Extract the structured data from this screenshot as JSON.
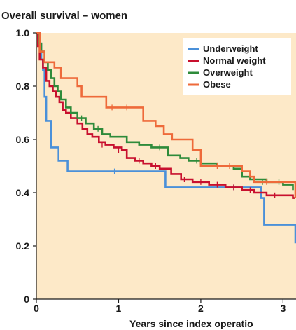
{
  "chart_data": {
    "type": "line",
    "title": "Overall survival – women",
    "xlabel": "Years since index operatio",
    "ylabel": "",
    "xlim": [
      0,
      3.15
    ],
    "ylim": [
      0,
      1.0
    ],
    "x_ticks": [
      0,
      1,
      2,
      3
    ],
    "x_tick_labels": [
      "0",
      "1",
      "2",
      "3"
    ],
    "y_ticks": [
      0,
      0.2,
      0.4,
      0.6,
      0.8,
      1.0
    ],
    "y_tick_labels": [
      "0",
      "0.2",
      "0.4",
      "0.6",
      "0.8",
      "1.0"
    ],
    "grid": false,
    "legend_position": "top-right",
    "background_color": "#fde9c8",
    "series": [
      {
        "name": "Underweight",
        "color": "#4a90d9",
        "points": [
          [
            0,
            1.0
          ],
          [
            0.02,
            0.96
          ],
          [
            0.06,
            0.9
          ],
          [
            0.08,
            0.86
          ],
          [
            0.1,
            0.76
          ],
          [
            0.12,
            0.67
          ],
          [
            0.18,
            0.57
          ],
          [
            0.27,
            0.52
          ],
          [
            0.38,
            0.48
          ],
          [
            1.57,
            0.48
          ],
          [
            1.57,
            0.42
          ],
          [
            2.73,
            0.42
          ],
          [
            2.73,
            0.38
          ],
          [
            2.77,
            0.38
          ],
          [
            2.77,
            0.28
          ],
          [
            3.15,
            0.28
          ],
          [
            3.15,
            0.21
          ]
        ],
        "censor_marks": [
          [
            0.95,
            0.48
          ],
          [
            2.4,
            0.42
          ]
        ]
      },
      {
        "name": "Normal weight",
        "color": "#c8102e",
        "points": [
          [
            0,
            1.0
          ],
          [
            0.02,
            0.95
          ],
          [
            0.04,
            0.9
          ],
          [
            0.08,
            0.87
          ],
          [
            0.12,
            0.82
          ],
          [
            0.16,
            0.8
          ],
          [
            0.2,
            0.78
          ],
          [
            0.24,
            0.76
          ],
          [
            0.28,
            0.74
          ],
          [
            0.32,
            0.71
          ],
          [
            0.36,
            0.7
          ],
          [
            0.42,
            0.68
          ],
          [
            0.5,
            0.66
          ],
          [
            0.56,
            0.64
          ],
          [
            0.62,
            0.62
          ],
          [
            0.68,
            0.61
          ],
          [
            0.76,
            0.59
          ],
          [
            0.84,
            0.58
          ],
          [
            0.94,
            0.57
          ],
          [
            1.04,
            0.56
          ],
          [
            1.1,
            0.53
          ],
          [
            1.2,
            0.52
          ],
          [
            1.3,
            0.51
          ],
          [
            1.4,
            0.5
          ],
          [
            1.5,
            0.49
          ],
          [
            1.64,
            0.47
          ],
          [
            1.76,
            0.45
          ],
          [
            1.9,
            0.44
          ],
          [
            2.1,
            0.43
          ],
          [
            2.3,
            0.42
          ],
          [
            2.5,
            0.41
          ],
          [
            2.65,
            0.4
          ],
          [
            2.8,
            0.39
          ],
          [
            3.0,
            0.39
          ],
          [
            3.12,
            0.38
          ],
          [
            3.15,
            0.38
          ]
        ],
        "censor_marks": [
          [
            0.8,
            0.58
          ],
          [
            1.0,
            0.56
          ],
          [
            1.25,
            0.52
          ],
          [
            1.45,
            0.5
          ],
          [
            1.8,
            0.45
          ],
          [
            2.0,
            0.44
          ],
          [
            2.2,
            0.43
          ],
          [
            2.4,
            0.42
          ],
          [
            2.6,
            0.41
          ],
          [
            2.9,
            0.39
          ]
        ]
      },
      {
        "name": "Overweight",
        "color": "#2e8b3a",
        "points": [
          [
            0,
            1.0
          ],
          [
            0.03,
            0.96
          ],
          [
            0.06,
            0.93
          ],
          [
            0.1,
            0.89
          ],
          [
            0.14,
            0.86
          ],
          [
            0.18,
            0.83
          ],
          [
            0.22,
            0.8
          ],
          [
            0.26,
            0.78
          ],
          [
            0.3,
            0.75
          ],
          [
            0.36,
            0.72
          ],
          [
            0.42,
            0.7
          ],
          [
            0.5,
            0.68
          ],
          [
            0.6,
            0.66
          ],
          [
            0.7,
            0.64
          ],
          [
            0.8,
            0.62
          ],
          [
            0.9,
            0.61
          ],
          [
            1.1,
            0.61
          ],
          [
            1.1,
            0.59
          ],
          [
            1.25,
            0.58
          ],
          [
            1.4,
            0.57
          ],
          [
            1.6,
            0.56
          ],
          [
            1.6,
            0.54
          ],
          [
            1.75,
            0.53
          ],
          [
            1.85,
            0.52
          ],
          [
            2.0,
            0.51
          ],
          [
            2.2,
            0.5
          ],
          [
            2.4,
            0.49
          ],
          [
            2.5,
            0.46
          ],
          [
            2.6,
            0.45
          ],
          [
            2.8,
            0.44
          ],
          [
            3.0,
            0.43
          ],
          [
            3.12,
            0.41
          ]
        ],
        "censor_marks": [
          [
            0.55,
            0.68
          ],
          [
            0.75,
            0.64
          ],
          [
            1.5,
            0.57
          ],
          [
            1.95,
            0.52
          ],
          [
            2.75,
            0.44
          ],
          [
            2.95,
            0.44
          ]
        ]
      },
      {
        "name": "Obese",
        "color": "#ee6a3a",
        "points": [
          [
            0,
            1.0
          ],
          [
            0.04,
            0.93
          ],
          [
            0.1,
            0.89
          ],
          [
            0.22,
            0.87
          ],
          [
            0.3,
            0.83
          ],
          [
            0.45,
            0.83
          ],
          [
            0.5,
            0.8
          ],
          [
            0.55,
            0.76
          ],
          [
            0.8,
            0.76
          ],
          [
            0.85,
            0.72
          ],
          [
            1.3,
            0.72
          ],
          [
            1.3,
            0.67
          ],
          [
            1.45,
            0.67
          ],
          [
            1.45,
            0.65
          ],
          [
            1.55,
            0.62
          ],
          [
            1.65,
            0.6
          ],
          [
            1.9,
            0.6
          ],
          [
            1.9,
            0.56
          ],
          [
            2.0,
            0.5
          ],
          [
            2.4,
            0.5
          ],
          [
            2.5,
            0.48
          ],
          [
            2.6,
            0.46
          ],
          [
            2.65,
            0.44
          ],
          [
            3.15,
            0.44
          ],
          [
            3.15,
            0.38
          ]
        ],
        "censor_marks": [
          [
            0.92,
            0.72
          ],
          [
            1.1,
            0.72
          ],
          [
            2.2,
            0.5
          ],
          [
            2.35,
            0.5
          ],
          [
            2.8,
            0.44
          ]
        ]
      }
    ]
  }
}
